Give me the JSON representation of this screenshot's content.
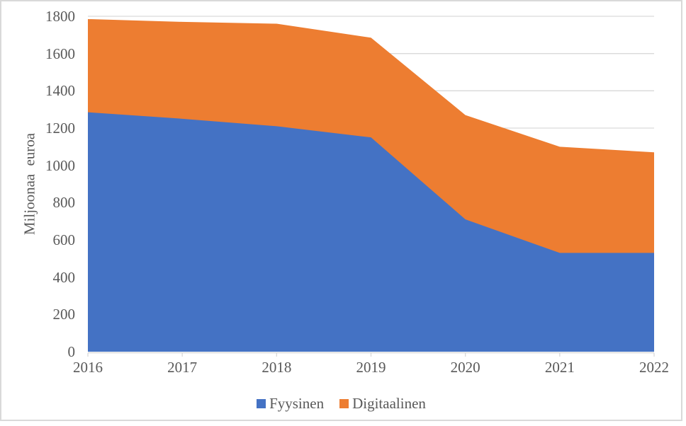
{
  "canvas": {
    "background_color": "#FFFFFF",
    "border_color": "#D9D9D9"
  },
  "axes": {
    "y_title": "Miljoonaa euroa",
    "y_tick_labels": [
      "0",
      "200",
      "400",
      "600",
      "800",
      "1000",
      "1200",
      "1400",
      "1600",
      "1800"
    ],
    "x_tick_labels": [
      "2016",
      "2017",
      "2018",
      "2019",
      "2020",
      "2021",
      "2022"
    ],
    "text_color": "#595959",
    "gridline_color": "#D9D9D9",
    "axis_line_color": "#D9D9D9"
  },
  "legend": {
    "items": [
      {
        "label": "Fyysinen",
        "color": "#4472C4"
      },
      {
        "label": "Digitaalinen",
        "color": "#ED7D31"
      }
    ]
  },
  "chart_data": {
    "type": "area",
    "stacked": true,
    "title": "",
    "xlabel": "",
    "ylabel": "Miljoonaa euroa",
    "categories": [
      "2016",
      "2017",
      "2018",
      "2019",
      "2020",
      "2021",
      "2022"
    ],
    "series": [
      {
        "name": "Fyysinen",
        "color": "#4472C4",
        "values": [
          1285,
          1250,
          1210,
          1150,
          710,
          530,
          530
        ]
      },
      {
        "name": "Digitaalinen",
        "color": "#ED7D31",
        "values": [
          500,
          520,
          550,
          535,
          560,
          570,
          540
        ]
      }
    ],
    "stacked_totals": [
      1785,
      1770,
      1760,
      1685,
      1270,
      1100,
      1070
    ],
    "ylim": [
      0,
      1800
    ],
    "ytick_step": 200,
    "grid": true,
    "legend_position": "bottom"
  }
}
